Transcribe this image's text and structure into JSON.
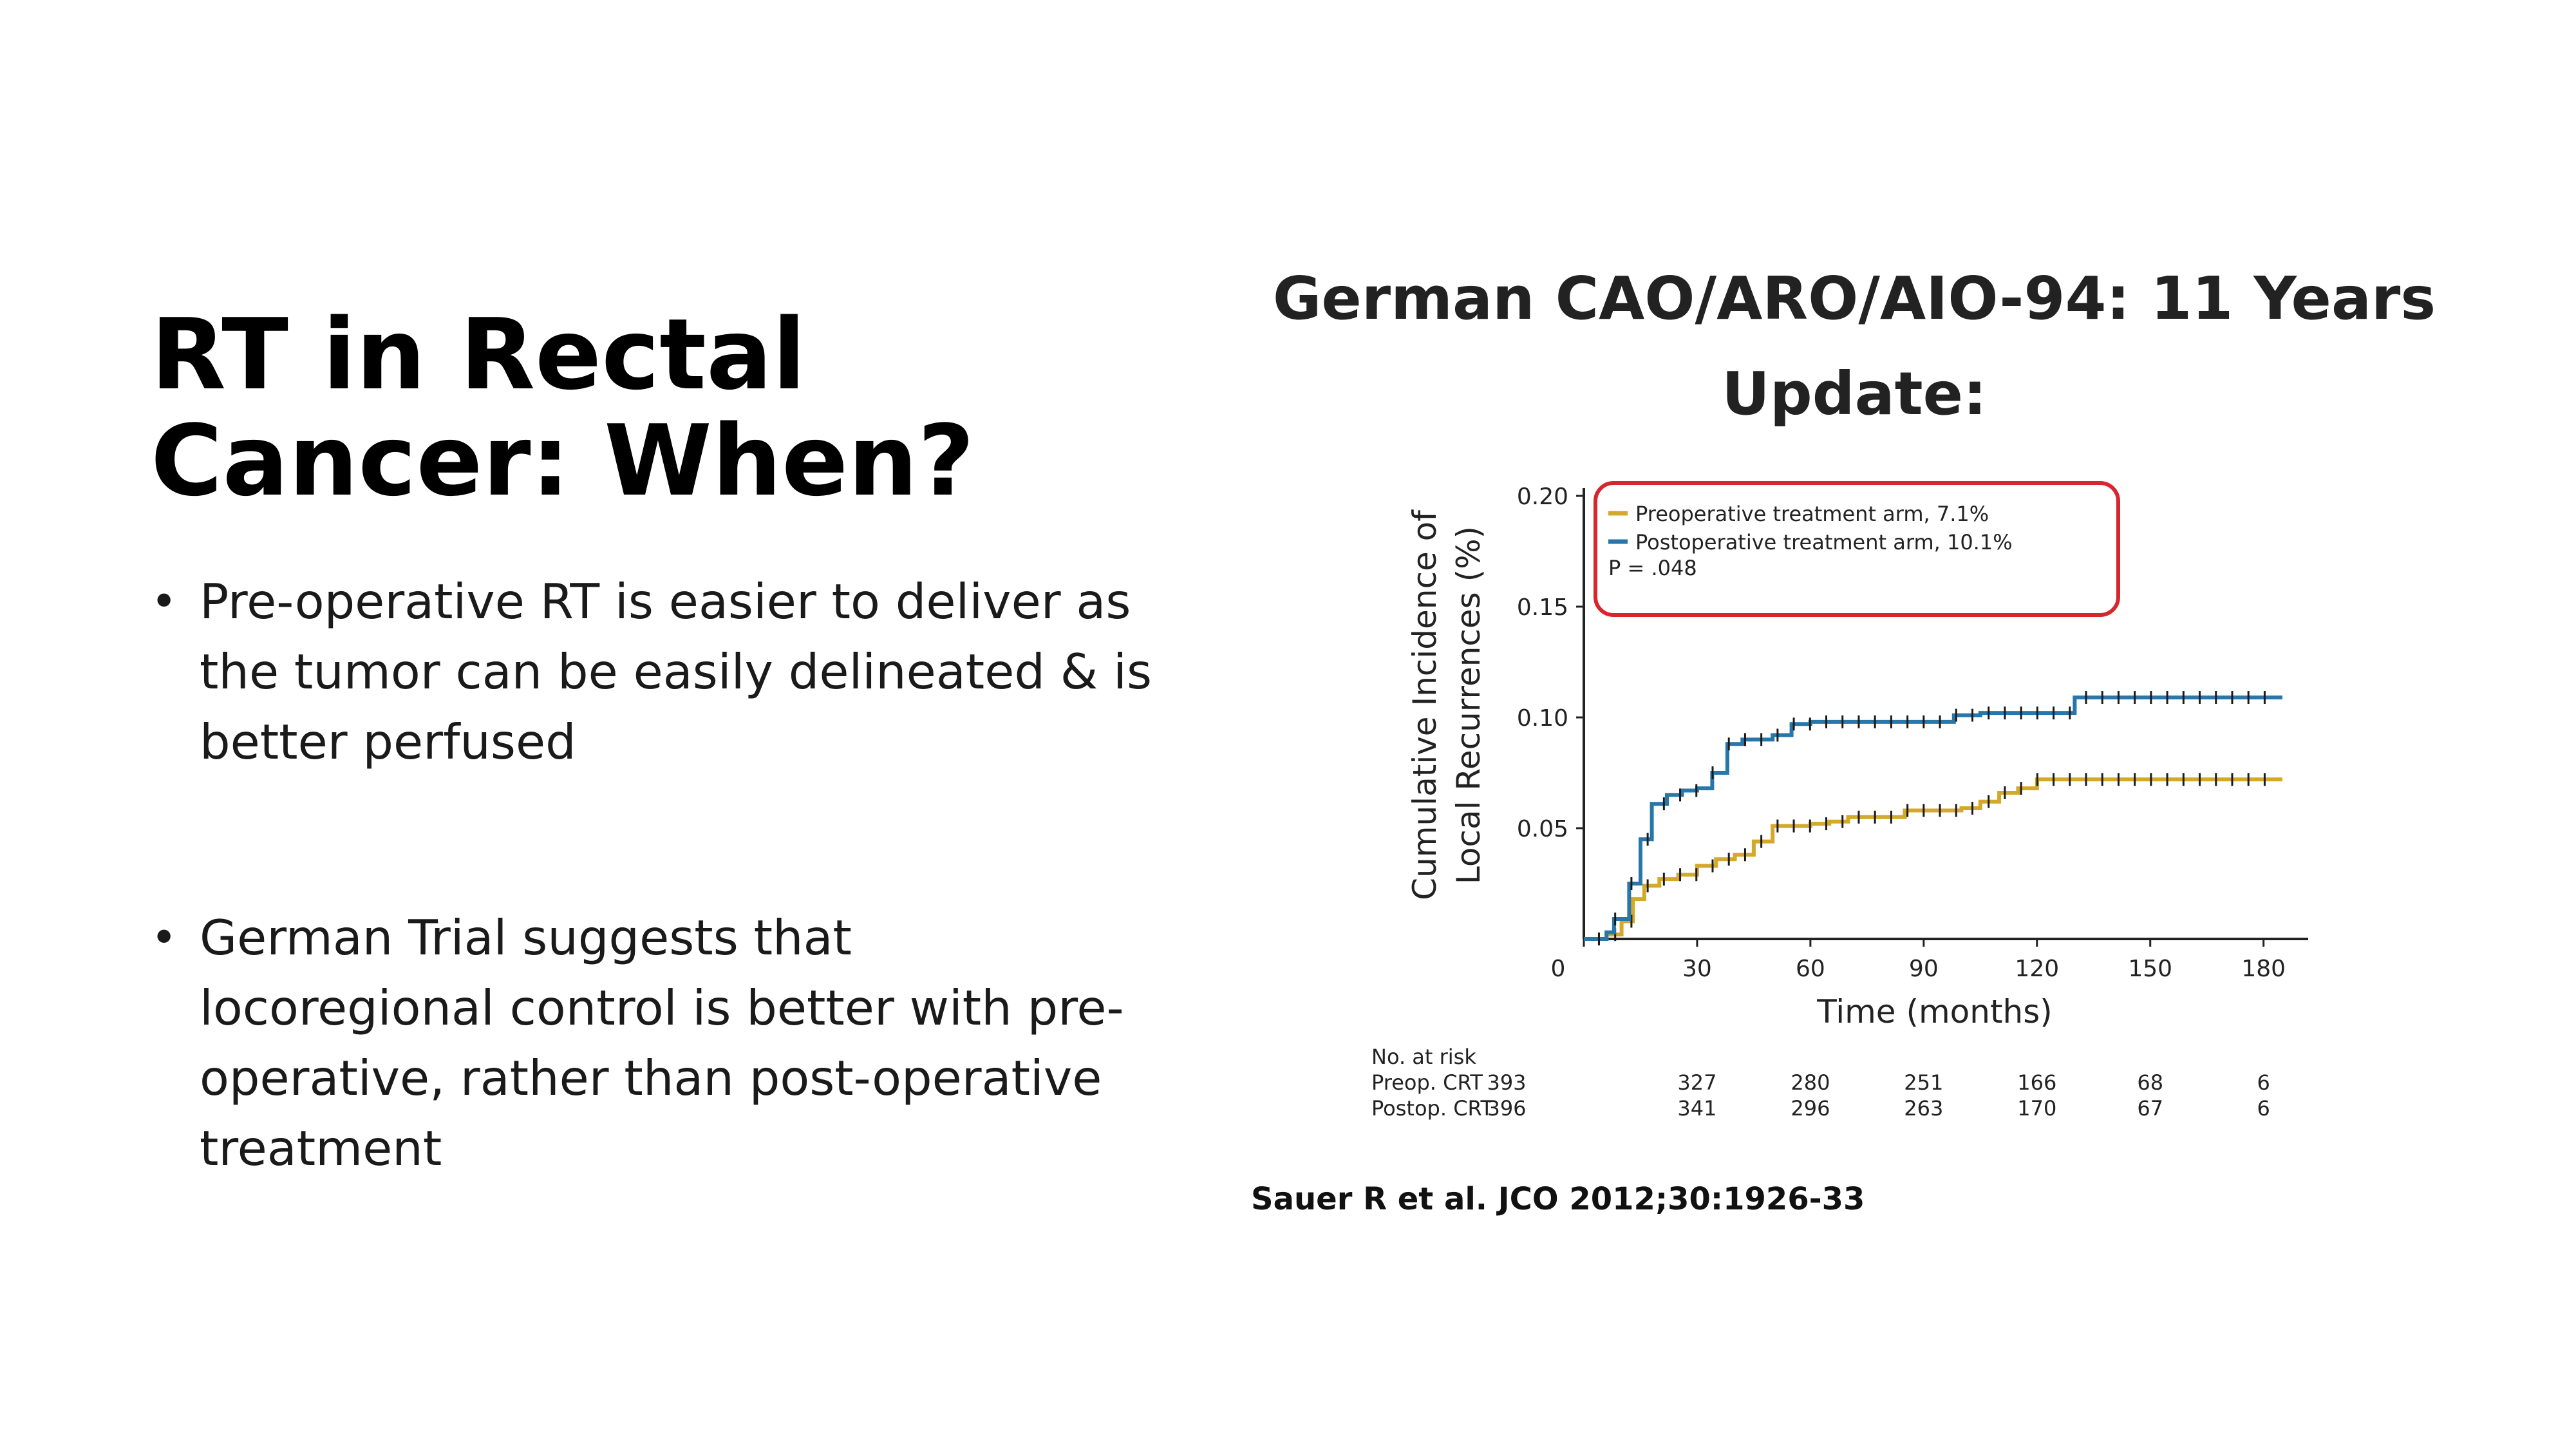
{
  "slide": {
    "title": "RT in Rectal Cancer: When?",
    "bullets": [
      "Pre-operative RT is easier to deliver as the tumor can be easily delineated & is better perfused",
      "German Trial suggests that locoregional control is better with pre-operative, rather than post-operative treatment"
    ],
    "chart_heading": "German CAO/ARO/AIO-94: 11 Years Update:",
    "citation": "Sauer R et al. JCO 2012;30:1926-33"
  },
  "chart_data": {
    "type": "line",
    "title": "",
    "xlabel": "Time (months)",
    "ylabel": "Cumulative Incidence of Local Recurrences (%)",
    "xlim": [
      0,
      185
    ],
    "ylim": [
      0,
      0.2
    ],
    "xticks": [
      0,
      30,
      60,
      90,
      120,
      150,
      180
    ],
    "yticks": [
      0.05,
      0.1,
      0.15,
      0.2
    ],
    "xtick_labels": [
      "0",
      "30",
      "60",
      "90",
      "120",
      "150",
      "180"
    ],
    "ytick_labels": [
      "0.05",
      "0.10",
      "0.15",
      "0.20"
    ],
    "grid": false,
    "legend_placement": "top-left",
    "series": [
      {
        "name": "Preoperative treatment arm, 7.1%",
        "color": "#d4a829",
        "points": [
          [
            0,
            0
          ],
          [
            6,
            0.002
          ],
          [
            10,
            0.008
          ],
          [
            13,
            0.018
          ],
          [
            16,
            0.024
          ],
          [
            20,
            0.027
          ],
          [
            25,
            0.029
          ],
          [
            30,
            0.033
          ],
          [
            35,
            0.036
          ],
          [
            40,
            0.038
          ],
          [
            45,
            0.044
          ],
          [
            50,
            0.051
          ],
          [
            55,
            0.051
          ],
          [
            60,
            0.052
          ],
          [
            65,
            0.053
          ],
          [
            70,
            0.055
          ],
          [
            80,
            0.055
          ],
          [
            85,
            0.058
          ],
          [
            95,
            0.058
          ],
          [
            100,
            0.059
          ],
          [
            105,
            0.062
          ],
          [
            110,
            0.066
          ],
          [
            115,
            0.068
          ],
          [
            120,
            0.072
          ],
          [
            185,
            0.072
          ]
        ]
      },
      {
        "name": "Postoperative treatment arm, 10.1%",
        "color": "#2777ab",
        "points": [
          [
            0,
            0
          ],
          [
            6,
            0.003
          ],
          [
            8,
            0.009
          ],
          [
            12,
            0.025
          ],
          [
            15,
            0.045
          ],
          [
            18,
            0.061
          ],
          [
            22,
            0.065
          ],
          [
            26,
            0.067
          ],
          [
            30,
            0.068
          ],
          [
            34,
            0.075
          ],
          [
            38,
            0.088
          ],
          [
            42,
            0.09
          ],
          [
            50,
            0.092
          ],
          [
            55,
            0.097
          ],
          [
            60,
            0.098
          ],
          [
            75,
            0.098
          ],
          [
            95,
            0.098
          ],
          [
            98,
            0.101
          ],
          [
            105,
            0.102
          ],
          [
            125,
            0.102
          ],
          [
            130,
            0.109
          ],
          [
            185,
            0.109
          ]
        ]
      }
    ],
    "annotation": "P = .048",
    "legend_box_color": "#d6262e",
    "risk_table": {
      "header": "No. at risk",
      "rows": [
        {
          "label": "Preop. CRT",
          "values": [
            "393",
            "327",
            "280",
            "251",
            "166",
            "68",
            "6"
          ]
        },
        {
          "label": "Postop. CRT",
          "values": [
            "396",
            "341",
            "296",
            "263",
            "170",
            "67",
            "6"
          ]
        }
      ]
    }
  }
}
